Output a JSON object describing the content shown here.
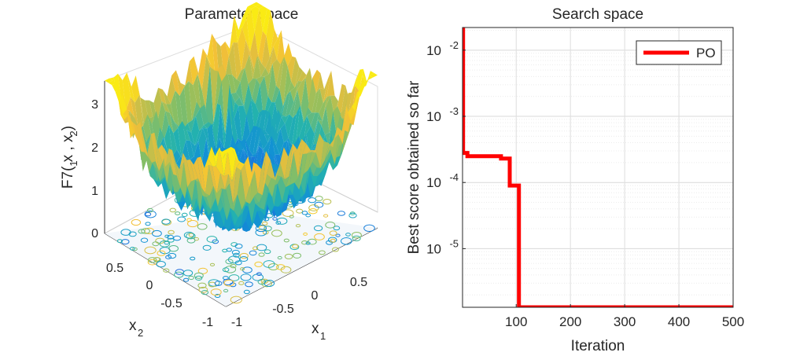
{
  "chart_data": [
    {
      "type": "surface",
      "title": "Parameter space",
      "xlabel": "x",
      "xlabel_sub": "1",
      "ylabel": "x",
      "ylabel_sub": "2",
      "zlabel": "F7( x  , x  )",
      "zlabel_sub1": "1",
      "zlabel_sub2": "2",
      "x_ticks": [
        "-1",
        "-0.5",
        "0",
        "0.5"
      ],
      "y_ticks": [
        "-1",
        "-0.5",
        "0",
        "0.5"
      ],
      "z_ticks": [
        "0",
        "1",
        "2",
        "3"
      ],
      "xlim": [
        -1,
        1
      ],
      "ylim": [
        -1,
        1
      ],
      "zlim": [
        0,
        3.5
      ],
      "colormap": "parula",
      "contour_below": true
    },
    {
      "type": "line",
      "title": "Search space",
      "xlabel": "Iteration",
      "ylabel": "Best score obtained so far",
      "y_scale": "log",
      "xlim": [
        1,
        500
      ],
      "ylim": [
        1.3e-06,
        0.022
      ],
      "x_ticks": [
        "100",
        "200",
        "300",
        "400",
        "500"
      ],
      "y_ticks": [
        {
          "base": "10",
          "exp": "-5",
          "value": 1e-05
        },
        {
          "base": "10",
          "exp": "-4",
          "value": 0.0001
        },
        {
          "base": "10",
          "exp": "-3",
          "value": 0.001
        },
        {
          "base": "10",
          "exp": "-2",
          "value": 0.01
        }
      ],
      "grid": true,
      "legend": "top-right",
      "series": [
        {
          "name": "PO",
          "color": "#ff0000",
          "x": [
            1,
            2,
            2,
            10,
            10,
            72,
            72,
            88,
            88,
            100,
            100,
            105,
            105,
            500
          ],
          "y": [
            0.022,
            0.022,
            0.00028,
            0.00028,
            0.00025,
            0.00025,
            0.00023,
            0.00023,
            9e-05,
            9e-05,
            9e-05,
            9e-05,
            1.3e-06,
            1.3e-06
          ]
        }
      ]
    }
  ]
}
